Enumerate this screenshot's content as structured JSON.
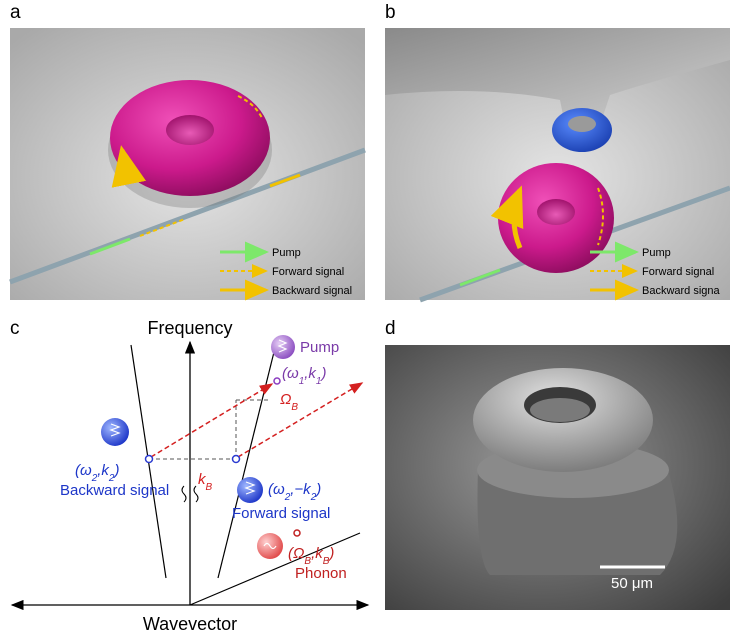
{
  "panels": {
    "a": {
      "label": "a",
      "legend": [
        "Pump",
        "Forward signal",
        "Backward signal"
      ]
    },
    "b": {
      "label": "b",
      "legend": [
        "Pump",
        "Forward signal",
        "Backward signa"
      ]
    },
    "c": {
      "label": "c",
      "y_axis": "Frequency",
      "x_axis": "Wavevector",
      "pump": "Pump",
      "pump_coord": [
        "(ω",
        "1",
        ",k",
        "1",
        ")"
      ],
      "omega_b": [
        "Ω",
        "B"
      ],
      "k_b": [
        "k",
        "B"
      ],
      "backward_coord": [
        "(ω",
        "2",
        ",k",
        "2",
        ")"
      ],
      "backward": "Backward signal",
      "forward_coord": [
        "(ω",
        "2",
        ",−k",
        "2",
        ")"
      ],
      "forward": "Forward signal",
      "phonon_coord": [
        "(Ω",
        "B",
        ",k",
        "B",
        ")"
      ],
      "phonon": "Phonon"
    },
    "d": {
      "label": "d",
      "scale_bar": "50 μm"
    }
  }
}
